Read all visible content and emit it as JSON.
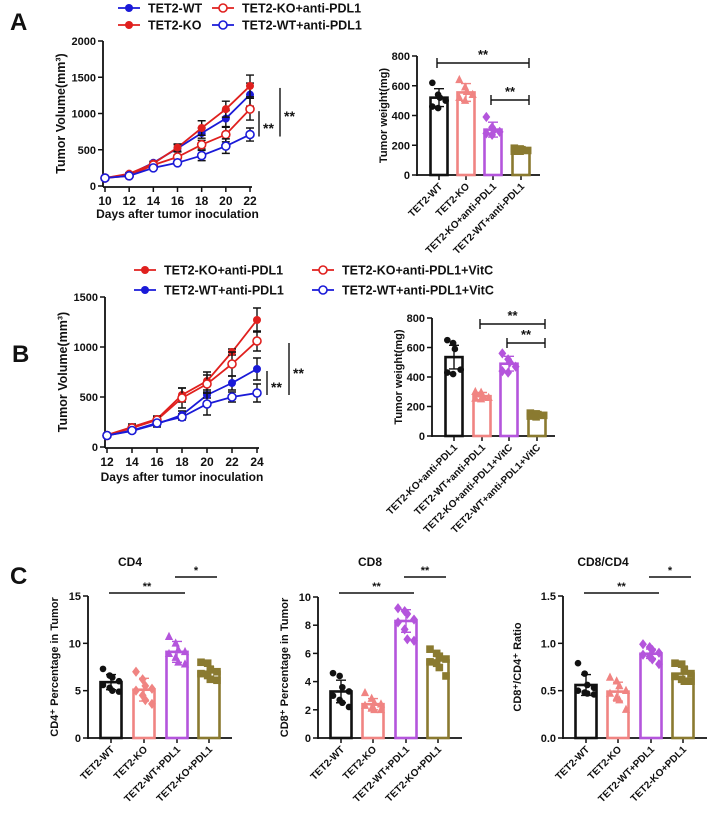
{
  "panels": [
    "A",
    "B",
    "C"
  ],
  "colors": {
    "red": "#e0201e",
    "blue": "#1a1ad8",
    "black": "#111111",
    "salmon": "#f08482",
    "purple": "#b455dc",
    "olive": "#8a7a30"
  },
  "chart_data": [
    {
      "panel": "A",
      "type": "line",
      "xlabel": "Days after tumor inoculation",
      "ylabel": "Tumor Volume(mm³)",
      "x": [
        10,
        12,
        14,
        16,
        18,
        20,
        22
      ],
      "xlim": [
        10,
        22
      ],
      "ylim": [
        0,
        2000
      ],
      "yticks": [
        0,
        500,
        1000,
        1500,
        2000
      ],
      "xticks": [
        10,
        12,
        14,
        16,
        18,
        20,
        22
      ],
      "series": [
        {
          "name": "TET2-WT",
          "color": "#1a1ad8",
          "filled": true,
          "values": [
            110,
            160,
            320,
            520,
            730,
            930,
            1260
          ],
          "err": [
            10,
            15,
            20,
            50,
            70,
            110,
            160
          ]
        },
        {
          "name": "TET2-KO",
          "color": "#e0201e",
          "filled": true,
          "values": [
            110,
            170,
            310,
            530,
            800,
            1060,
            1380
          ],
          "err": [
            10,
            15,
            20,
            50,
            100,
            110,
            150
          ]
        },
        {
          "name": "TET2-KO+anti-PDL1",
          "color": "#e0201e",
          "filled": false,
          "values": [
            110,
            140,
            290,
            400,
            570,
            710,
            1060
          ],
          "err": [
            10,
            15,
            20,
            30,
            60,
            100,
            150
          ]
        },
        {
          "name": "TET2-WT+anti-PDL1",
          "color": "#1a1ad8",
          "filled": false,
          "values": [
            110,
            140,
            250,
            320,
            420,
            550,
            710
          ],
          "err": [
            10,
            15,
            20,
            20,
            70,
            100,
            90
          ]
        }
      ],
      "significance": [
        {
          "series": [
            2,
            3
          ],
          "label": "**"
        },
        {
          "series": [
            1,
            3
          ],
          "label": "**"
        }
      ]
    },
    {
      "panel": "A",
      "type": "bar",
      "ylabel": "Tumor weight(mg)",
      "ylim": [
        0,
        800
      ],
      "yticks": [
        0,
        200,
        400,
        600,
        800
      ],
      "categories": [
        "TET2-WT",
        "TET2-KO",
        "TET2-KO+anti-PDL1",
        "TET2-WT+anti-PDL1"
      ],
      "values": [
        520,
        555,
        305,
        170
      ],
      "err": [
        60,
        60,
        50,
        15
      ],
      "colors": [
        "#111111",
        "#f08482",
        "#b455dc",
        "#8a7a30"
      ],
      "markers": [
        "circle",
        "triangle",
        "diamond",
        "square"
      ],
      "points": [
        [
          620,
          540,
          520,
          500,
          460,
          450
        ],
        [
          640,
          590,
          560,
          540,
          520,
          500
        ],
        [
          390,
          320,
          300,
          290,
          280,
          270
        ],
        [
          180,
          175,
          170,
          165,
          160,
          160
        ]
      ],
      "significance": [
        {
          "from": 0,
          "to": 3,
          "label": "**"
        },
        {
          "from": 2,
          "to": 3,
          "label": "**"
        }
      ]
    },
    {
      "panel": "B",
      "type": "line",
      "xlabel": "Days after tumor inoculation",
      "ylabel": "Tumor Volume(mm³)",
      "x": [
        12,
        14,
        16,
        18,
        20,
        22,
        24
      ],
      "xlim": [
        12,
        24
      ],
      "ylim": [
        0,
        1500
      ],
      "yticks": [
        0,
        500,
        1000,
        1500
      ],
      "xticks": [
        12,
        14,
        16,
        18,
        20,
        22,
        24
      ],
      "series": [
        {
          "name": "TET2-KO+anti-PDL1",
          "color": "#e0201e",
          "filled": true,
          "values": [
            120,
            200,
            280,
            520,
            660,
            950,
            1270
          ],
          "err": [
            10,
            30,
            30,
            70,
            90,
            30,
            120
          ]
        },
        {
          "name": "TET2-WT+anti-PDL1",
          "color": "#1a1ad8",
          "filled": true,
          "values": [
            115,
            160,
            230,
            320,
            520,
            640,
            780
          ],
          "err": [
            10,
            15,
            30,
            40,
            30,
            70,
            110
          ]
        },
        {
          "name": "TET2-KO+anti-PDL1+VitC",
          "color": "#e0201e",
          "filled": false,
          "values": [
            115,
            190,
            270,
            490,
            630,
            830,
            1060
          ],
          "err": [
            10,
            20,
            30,
            100,
            90,
            120,
            100
          ]
        },
        {
          "name": "TET2-WT+anti-PDL1+VitC",
          "color": "#1a1ad8",
          "filled": false,
          "values": [
            115,
            165,
            240,
            300,
            430,
            500,
            540
          ],
          "err": [
            10,
            15,
            20,
            30,
            110,
            50,
            90
          ]
        }
      ],
      "significance": [
        {
          "series": [
            1,
            3
          ],
          "label": "**"
        },
        {
          "series": [
            2,
            3
          ],
          "label": "**"
        }
      ]
    },
    {
      "panel": "B",
      "type": "bar",
      "ylabel": "Tumor weight(mg)",
      "ylim": [
        0,
        800
      ],
      "yticks": [
        0,
        200,
        400,
        600,
        800
      ],
      "categories": [
        "TET2-KO+anti-PDL1",
        "TET2-WT+anti-PDL1",
        "TET2-KO+anti-PDL1+VitC",
        "TET2-WT+anti-PDL1+VitC"
      ],
      "values": [
        535,
        270,
        490,
        145
      ],
      "err": [
        80,
        25,
        50,
        15
      ],
      "colors": [
        "#111111",
        "#f08482",
        "#b455dc",
        "#8a7a30"
      ],
      "markers": [
        "circle",
        "triangle",
        "diamond",
        "square"
      ],
      "points": [
        [
          650,
          630,
          590,
          450,
          430,
          420
        ],
        [
          300,
          295,
          270,
          260,
          255,
          250
        ],
        [
          560,
          520,
          500,
          470,
          440,
          430
        ],
        [
          155,
          150,
          145,
          140,
          135,
          130
        ]
      ],
      "significance": [
        {
          "from": 1,
          "to": 3,
          "label": "**"
        },
        {
          "from": 2,
          "to": 3,
          "label": "**"
        }
      ]
    },
    {
      "panel": "C",
      "type": "bar",
      "title": "CD4",
      "ylabel": "CD4⁺ Percentage in Tumor",
      "ylim": [
        0,
        15
      ],
      "yticks": [
        0,
        5,
        10,
        15
      ],
      "categories": [
        "TET2-WT",
        "TET2-KO",
        "TET2-WT+PDL1",
        "TET2-KO+PDL1"
      ],
      "values": [
        5.9,
        5.1,
        9.1,
        7.0
      ],
      "err": [
        0.8,
        1.2,
        1.1,
        0.6
      ],
      "colors": [
        "#111111",
        "#f08482",
        "#b455dc",
        "#8a7a30"
      ],
      "markers": [
        "circle",
        "diamond",
        "triangle",
        "square"
      ],
      "points": [
        [
          7.3,
          6.6,
          6.4,
          6.0,
          5.6,
          5.3,
          5.0,
          4.9
        ],
        [
          7.0,
          6.2,
          5.5,
          5.2,
          5.0,
          4.5,
          4.0,
          3.6
        ],
        [
          10.7,
          10.0,
          9.3,
          9.1,
          8.9,
          8.5,
          8.0,
          7.8
        ],
        [
          8.0,
          7.9,
          7.2,
          7.0,
          6.8,
          6.6,
          6.2,
          6.1
        ]
      ],
      "significance": [
        {
          "from": 0,
          "to": 2,
          "label": "**"
        },
        {
          "from": 2,
          "to": 3,
          "label": "*"
        }
      ]
    },
    {
      "panel": "C",
      "type": "bar",
      "title": "CD8",
      "ylabel": "CD8⁺ Percentage in Tumor",
      "ylim": [
        0,
        10
      ],
      "yticks": [
        0,
        2,
        4,
        6,
        8,
        10
      ],
      "categories": [
        "TET2-WT",
        "TET2-KO",
        "TET2-WT+PDL1",
        "TET2-KO+PDL1"
      ],
      "values": [
        3.3,
        2.4,
        8.3,
        5.5
      ],
      "err": [
        0.8,
        0.4,
        0.8,
        0.4
      ],
      "colors": [
        "#111111",
        "#f08482",
        "#b455dc",
        "#8a7a30"
      ],
      "markers": [
        "circle",
        "triangle",
        "diamond",
        "square"
      ],
      "points": [
        [
          4.6,
          4.4,
          3.6,
          3.3,
          3.0,
          2.7,
          2.5,
          2.2
        ],
        [
          3.2,
          2.8,
          2.5,
          2.4,
          2.3,
          2.1,
          2.0,
          2.0
        ],
        [
          9.2,
          9.0,
          8.8,
          8.4,
          8.2,
          7.7,
          7.0,
          6.9
        ],
        [
          6.3,
          6.0,
          5.8,
          5.6,
          5.4,
          5.3,
          5.0,
          4.4
        ]
      ],
      "significance": [
        {
          "from": 0,
          "to": 2,
          "label": "**"
        },
        {
          "from": 2,
          "to": 3,
          "label": "**"
        }
      ]
    },
    {
      "panel": "C",
      "type": "bar",
      "title": "CD8/CD4",
      "ylabel": "CD8⁺/CD4⁺ Ratio",
      "ylim": [
        0,
        1.5
      ],
      "yticks": [
        0.0,
        0.5,
        1.0,
        1.5
      ],
      "ytick_decimals": 1,
      "categories": [
        "TET2-WT",
        "TET2-KO",
        "TET2-WT+PDL1",
        "TET2-KO+PDL1"
      ],
      "values": [
        0.56,
        0.49,
        0.89,
        0.68
      ],
      "err": [
        0.11,
        0.1,
        0.05,
        0.08
      ],
      "colors": [
        "#111111",
        "#f08482",
        "#b455dc",
        "#8a7a30"
      ],
      "markers": [
        "circle",
        "triangle",
        "diamond",
        "square"
      ],
      "points": [
        [
          0.79,
          0.68,
          0.56,
          0.53,
          0.5,
          0.48,
          0.47,
          0.46
        ],
        [
          0.64,
          0.6,
          0.55,
          0.5,
          0.47,
          0.43,
          0.4,
          0.3
        ],
        [
          0.99,
          0.96,
          0.93,
          0.9,
          0.88,
          0.86,
          0.83,
          0.78
        ],
        [
          0.79,
          0.78,
          0.72,
          0.68,
          0.65,
          0.62,
          0.6,
          0.6
        ]
      ],
      "significance": [
        {
          "from": 0,
          "to": 2,
          "label": "**"
        },
        {
          "from": 2,
          "to": 3,
          "label": "*"
        }
      ]
    }
  ]
}
